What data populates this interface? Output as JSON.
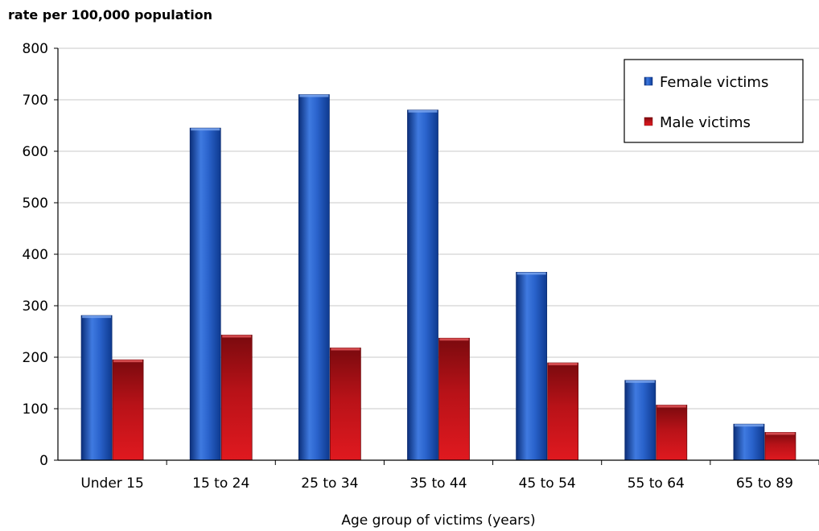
{
  "chart_data": {
    "type": "bar",
    "title": "",
    "xlabel": "Age group of victims (years)",
    "ylabel": "rate per 100,000 population",
    "ylim": [
      0,
      800
    ],
    "yticks": [
      0,
      100,
      200,
      300,
      400,
      500,
      600,
      700,
      800
    ],
    "grid": true,
    "legend_position": "top-right",
    "categories": [
      "Under 15",
      "15 to 24",
      "25 to 34",
      "35 to 44",
      "45 to 54",
      "55 to 64",
      "65 to 89"
    ],
    "series": [
      {
        "name": "Female victims",
        "color": "#1f57b8",
        "values": [
          281,
          645,
          710,
          680,
          365,
          155,
          70
        ]
      },
      {
        "name": "Male victims",
        "color": "#c0141a",
        "values": [
          195,
          243,
          218,
          237,
          189,
          107,
          54
        ]
      }
    ]
  }
}
